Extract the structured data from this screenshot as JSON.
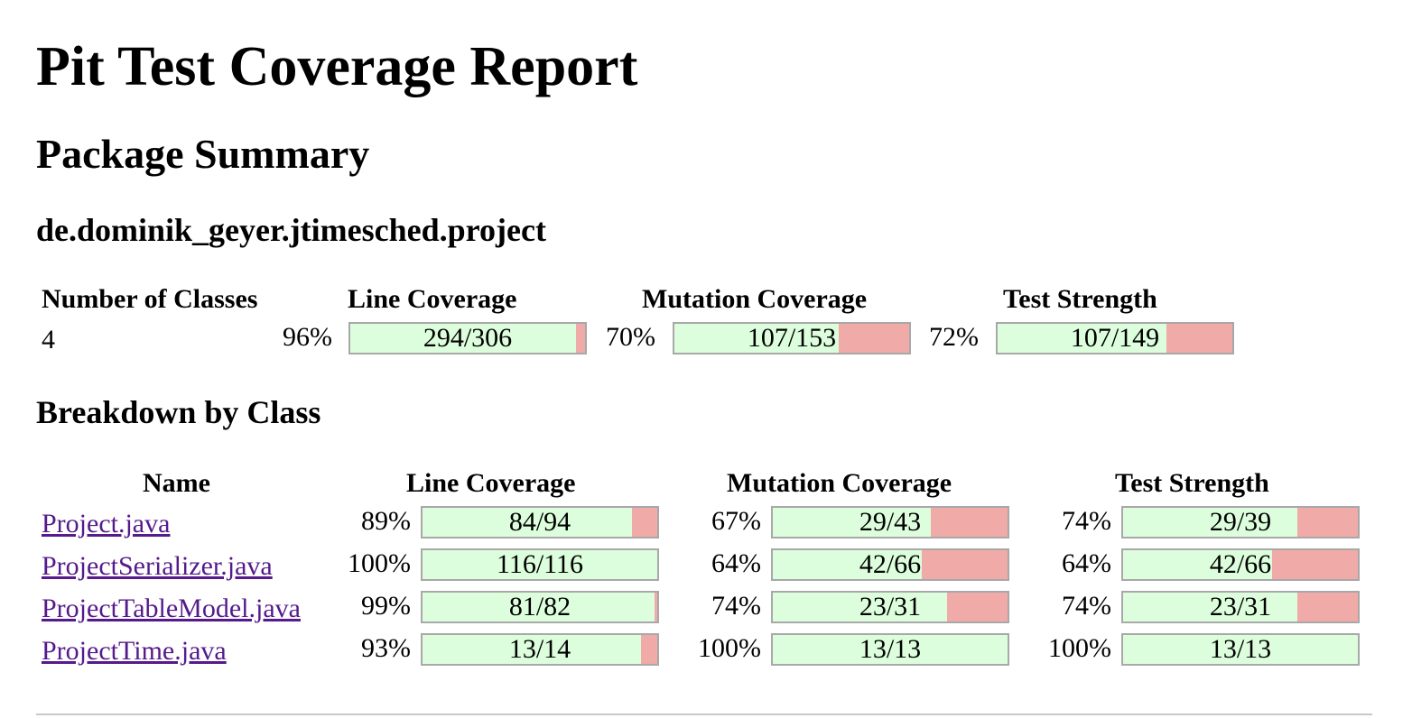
{
  "title": "Pit Test Coverage Report",
  "subtitle": "Package Summary",
  "package_name": "de.dominik_geyer.jtimesched.project",
  "summary": {
    "headers": {
      "classes": "Number of Classes",
      "line": "Line Coverage",
      "mutation": "Mutation Coverage",
      "strength": "Test Strength"
    },
    "num_classes": "4",
    "line": {
      "pct": "96%",
      "text": "294/306",
      "fraction": 0.961
    },
    "mutation": {
      "pct": "70%",
      "text": "107/153",
      "fraction": 0.699
    },
    "strength": {
      "pct": "72%",
      "text": "107/149",
      "fraction": 0.718
    }
  },
  "breakdown": {
    "title": "Breakdown by Class",
    "headers": {
      "name": "Name",
      "line": "Line Coverage",
      "mutation": "Mutation Coverage",
      "strength": "Test Strength"
    },
    "rows": [
      {
        "name": "Project.java",
        "line": {
          "pct": "89%",
          "text": "84/94",
          "fraction": 0.894
        },
        "mutation": {
          "pct": "67%",
          "text": "29/43",
          "fraction": 0.674
        },
        "strength": {
          "pct": "74%",
          "text": "29/39",
          "fraction": 0.744
        }
      },
      {
        "name": "ProjectSerializer.java",
        "line": {
          "pct": "100%",
          "text": "116/116",
          "fraction": 1.0
        },
        "mutation": {
          "pct": "64%",
          "text": "42/66",
          "fraction": 0.636
        },
        "strength": {
          "pct": "64%",
          "text": "42/66",
          "fraction": 0.636
        }
      },
      {
        "name": "ProjectTableModel.java",
        "line": {
          "pct": "99%",
          "text": "81/82",
          "fraction": 0.988
        },
        "mutation": {
          "pct": "74%",
          "text": "23/31",
          "fraction": 0.742
        },
        "strength": {
          "pct": "74%",
          "text": "23/31",
          "fraction": 0.742
        }
      },
      {
        "name": "ProjectTime.java",
        "line": {
          "pct": "93%",
          "text": "13/14",
          "fraction": 0.929
        },
        "mutation": {
          "pct": "100%",
          "text": "13/13",
          "fraction": 1.0
        },
        "strength": {
          "pct": "100%",
          "text": "13/13",
          "fraction": 1.0
        }
      }
    ]
  },
  "colors": {
    "covered": "#ddfedd",
    "uncovered": "#f0aaa7",
    "link": "#551a8b"
  }
}
